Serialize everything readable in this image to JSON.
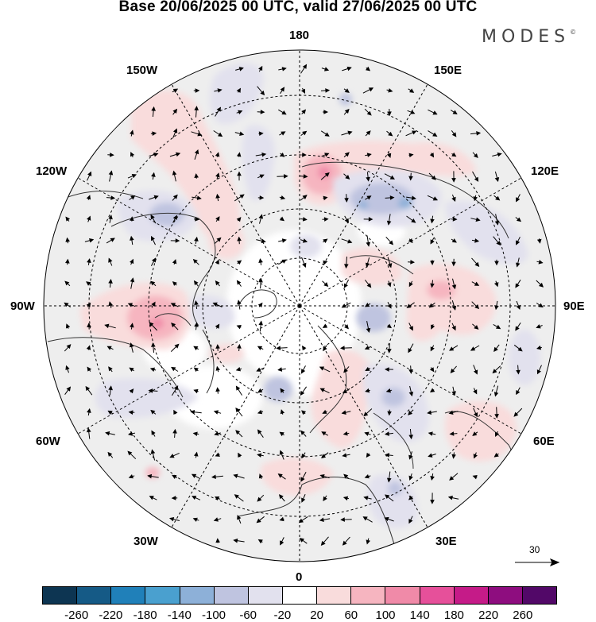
{
  "title": "Base 20/06/2025 00 UTC, valid 27/06/2025 00 UTC",
  "brand": {
    "name": "MODES",
    "mark": "©"
  },
  "map": {
    "projection": "north polar stereographic",
    "longitude_labels": {
      "top": "180",
      "bottom": "0",
      "left": "90W",
      "right": "90E",
      "upper_left_1": "150W",
      "upper_left_2": "120W",
      "upper_right_1": "150E",
      "upper_right_2": "120E",
      "lower_left_1": "60W",
      "lower_left_2": "30W",
      "lower_right_1": "60E",
      "lower_right_2": "30E"
    },
    "background": "#eeeeee",
    "land_coast_color": "#333333"
  },
  "vector_scale": {
    "value": "30"
  },
  "colorbar": {
    "ticks": [
      "-260",
      "-220",
      "-180",
      "-140",
      "-100",
      "-60",
      "-20",
      "20",
      "60",
      "100",
      "140",
      "180",
      "220",
      "260"
    ],
    "colors": [
      "#0d3552",
      "#155a86",
      "#2080b9",
      "#4aa0cf",
      "#8db0d8",
      "#bfc4e0",
      "#e2e1ee",
      "#ffffff",
      "#f9dcdc",
      "#f6b5c0",
      "#f08aa8",
      "#e6509a",
      "#c51b88",
      "#8e0d7f",
      "#520868"
    ]
  }
}
